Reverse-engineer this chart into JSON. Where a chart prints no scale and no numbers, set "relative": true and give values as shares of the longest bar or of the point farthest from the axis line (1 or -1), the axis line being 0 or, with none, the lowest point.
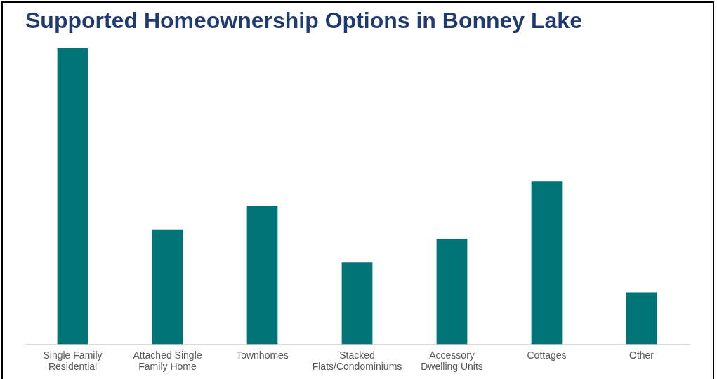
{
  "chart_data": {
    "type": "bar",
    "title": "Supported Homeownership Options in Bonney Lake",
    "categories": [
      "Single Family Residential",
      "Attached Single Family Home",
      "Townhomes",
      "Stacked Flats/Condominiums",
      "Accessory Dwelling Units",
      "Cottages",
      "Other"
    ],
    "values": [
      1,
      0.388,
      0.467,
      0.275,
      0.356,
      0.55,
      0.175
    ],
    "color": "#007377",
    "relative": true,
    "grid": false,
    "legend": false
  }
}
